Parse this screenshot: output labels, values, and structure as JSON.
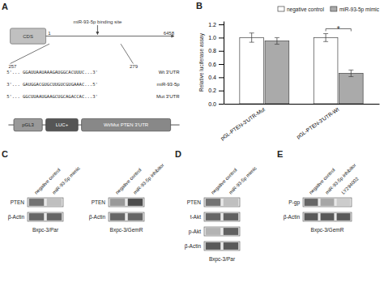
{
  "chart_data": [
    {
      "type": "diagram",
      "annotations": [
        "A",
        "CDS",
        "1",
        "6458",
        "miR-93-5p binding site",
        "257",
        "279",
        "5'... GGAUUAAUAAAGAUGGCACUUUC...3'",
        "Wt 3'UTR",
        "3'... GAUGGACGUGCUUGUCGUGAAAC...5'",
        "miR-93-5p",
        "5'... GGCUUAAUGAAGCUGCAGACCAC...3'",
        "Mut 3'UTR",
        "pGL3",
        "LUC+",
        "Wt/Mut PTEN 3'UTR"
      ]
    },
    {
      "type": "bar",
      "annotations": [
        "B",
        "*"
      ],
      "categories": [
        "pGL-PTEN-3'UTR-Mut",
        "pGL-PTEN-3'UTR-Wt"
      ],
      "series": [
        {
          "name": "negative control",
          "color": "#ffffff",
          "values": [
            1.0,
            1.0
          ],
          "errors": [
            0.07,
            0.06
          ]
        },
        {
          "name": "miR-93-5p mimic",
          "color": "#aaaaaa",
          "values": [
            0.95,
            0.46
          ],
          "errors": [
            0.05,
            0.05
          ]
        }
      ],
      "ylabel": "Relative luciferase assay",
      "ylim": [
        0.0,
        1.25
      ],
      "yticks": [
        {
          "value": 0.0,
          "label": "0.0"
        },
        0.2,
        0.4,
        0.6,
        0.8,
        {
          "value": 1.0,
          "label": "1.0"
        },
        1.2
      ],
      "legend": "upper right"
    },
    {
      "type": "blot",
      "annotations": [
        "C"
      ],
      "title": "Bxpc-3/Par",
      "categories": [
        "negative control",
        "miR-93-5p mimic"
      ],
      "series": [
        {
          "name": "PTEN",
          "values": [
            0.55,
            0.25
          ]
        },
        {
          "name": "β-Actin",
          "values": [
            0.6,
            0.6
          ]
        }
      ]
    },
    {
      "type": "blot",
      "title": "Bxpc-3/GemR",
      "categories": [
        "negative control",
        "miR-93-5p inhibitor"
      ],
      "series": [
        {
          "name": "PTEN",
          "values": [
            0.4,
            0.7
          ]
        },
        {
          "name": "β-Actin",
          "values": [
            0.6,
            0.6
          ]
        }
      ]
    },
    {
      "type": "blot",
      "annotations": [
        "D"
      ],
      "title": "Bxpc-3/Par",
      "categories": [
        "negative control",
        "miR-93-5p mimic"
      ],
      "series": [
        {
          "name": "PTEN",
          "values": [
            0.55,
            0.25
          ]
        },
        {
          "name": "t-Akt",
          "values": [
            0.6,
            0.62
          ]
        },
        {
          "name": "p-Akt",
          "values": [
            0.3,
            0.62
          ]
        },
        {
          "name": "β-Actin",
          "values": [
            0.65,
            0.65
          ]
        }
      ]
    },
    {
      "type": "blot",
      "annotations": [
        "E"
      ],
      "title": "Bxpc-3/GemR",
      "categories": [
        "negative control",
        "miR-93-5p inhibitor",
        "LY294002"
      ],
      "series": [
        {
          "name": "P-gp",
          "values": [
            0.6,
            0.35,
            0.2
          ]
        },
        {
          "name": "β-Actin",
          "values": [
            0.65,
            0.65,
            0.65
          ]
        }
      ]
    }
  ]
}
